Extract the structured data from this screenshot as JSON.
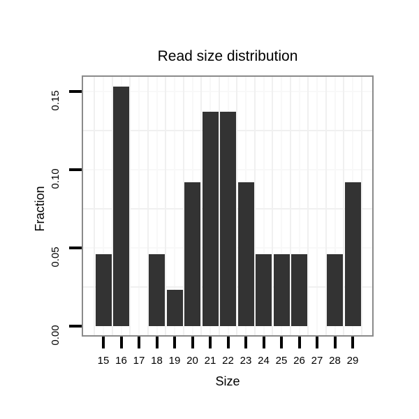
{
  "chart_data": {
    "type": "bar",
    "title": "Read size distribution",
    "xlabel": "Size",
    "ylabel": "Fraction",
    "categories": [
      "15",
      "16",
      "17",
      "18",
      "19",
      "20",
      "21",
      "22",
      "23",
      "24",
      "25",
      "26",
      "27",
      "28",
      "29"
    ],
    "values": [
      0.046,
      0.153,
      0,
      0.046,
      0.023,
      0.092,
      0.137,
      0.137,
      0.092,
      0.046,
      0.046,
      0.046,
      0,
      0.046,
      0.092
    ],
    "ytick_labels": [
      "0.00",
      "0.05",
      "0.10",
      "0.15"
    ],
    "ytick_values": [
      0,
      0.05,
      0.1,
      0.15
    ],
    "minor_ytick_values": [
      0.025,
      0.075,
      0.125
    ],
    "ylim": [
      -0.006,
      0.16
    ],
    "grid": "very light minor gridlines, horizontal and vertical",
    "legend": "none",
    "colors": {
      "bar": "#333333",
      "panel_border": "#8a8a8a",
      "grid_minor": "#f0f0f0",
      "grid_major": "#f8f8f8",
      "tick": "#000000",
      "text": "#000000"
    }
  }
}
